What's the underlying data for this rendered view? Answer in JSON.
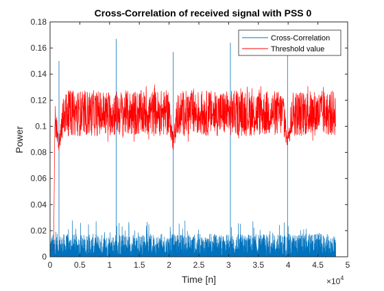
{
  "chart_data": {
    "type": "line",
    "title": "Cross-Correlation of received signal with PSS 0",
    "xlabel": "Time [n]",
    "ylabel": "Power",
    "xlim": [
      0,
      50000
    ],
    "ylim": [
      0,
      0.18
    ],
    "x_ticks": [
      0,
      5000,
      10000,
      15000,
      20000,
      25000,
      30000,
      35000,
      40000,
      45000,
      50000
    ],
    "x_tick_labels": [
      "0",
      "0.5",
      "1",
      "1.5",
      "2",
      "2.5",
      "3",
      "3.5",
      "4",
      "4.5",
      "5"
    ],
    "x_exponent_label": "×10",
    "x_exponent_power": "4",
    "y_ticks": [
      0,
      0.02,
      0.04,
      0.06,
      0.08,
      0.1,
      0.12,
      0.14,
      0.16,
      0.18
    ],
    "y_tick_labels": [
      "0",
      "0.02",
      "0.04",
      "0.06",
      "0.08",
      "0.1",
      "0.12",
      "0.14",
      "0.16",
      "0.18"
    ],
    "grid": false,
    "legend_position": "top-right",
    "x_data_max": 48000,
    "series": [
      {
        "name": "Cross-Correlation",
        "color": "#0072BD",
        "noise_floor_typical": 0.008,
        "noise_floor_max": 0.028,
        "peaks": [
          {
            "x": 1500,
            "y": 0.15
          },
          {
            "x": 11100,
            "y": 0.167
          },
          {
            "x": 20700,
            "y": 0.157
          },
          {
            "x": 30300,
            "y": 0.164
          },
          {
            "x": 39900,
            "y": 0.158
          }
        ]
      },
      {
        "name": "Threshold value",
        "color": "#FF0000",
        "mean_level": 0.11,
        "range": [
          0.088,
          0.132
        ],
        "initial_rise": [
          {
            "x": 0,
            "y": 0.005
          },
          {
            "x": 600,
            "y": 0.006
          },
          {
            "x": 800,
            "y": 0.1
          }
        ],
        "dips": [
          {
            "x": 1500,
            "y": 0.079
          },
          {
            "x": 20700,
            "y": 0.081
          },
          {
            "x": 39900,
            "y": 0.083
          }
        ]
      }
    ]
  }
}
